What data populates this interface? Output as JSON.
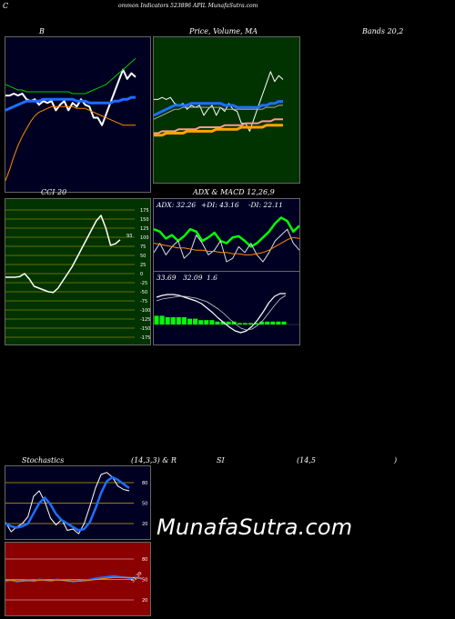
{
  "header": {
    "c": "C",
    "title": "ommon  Indicators 523896  APIL  MunafaSutra.com"
  },
  "titles": {
    "b": "B",
    "price": "Price,  Volume,  MA",
    "bands": "Bands 20,2",
    "cci": "CCI 20",
    "adx": "ADX  & MACD 12,26,9",
    "stoch_a": "Stochastics",
    "stoch_b": "(14,3,3) & R",
    "stoch_c": "SI",
    "stoch_d": "(14,5",
    "stoch_e": ")"
  },
  "watermark": "MunafaSutra.com",
  "colors": {
    "green_bg": "#003300",
    "navy_bg": "#000022",
    "red_bg": "#8b0000",
    "ma_blue": "#1e6fff",
    "orange": "#ff8c00"
  },
  "chart_data": [
    {
      "type": "line",
      "name": "bollinger",
      "series": [
        {
          "name": "price",
          "color": "#ffffff",
          "values": [
            66,
            66,
            67,
            66,
            67,
            64,
            63,
            64,
            61,
            63,
            62,
            63,
            58,
            61,
            63,
            58,
            62,
            60,
            64,
            61,
            60,
            54,
            54,
            50,
            56,
            62,
            68,
            74,
            80,
            75,
            78,
            76
          ]
        },
        {
          "name": "upper",
          "color": "#00cc00",
          "values": [
            72,
            71,
            70,
            69,
            69,
            68,
            68,
            68,
            68,
            68,
            68,
            68,
            68,
            68,
            68,
            68,
            67,
            67,
            67,
            67,
            68,
            69,
            70,
            71,
            72,
            74,
            76,
            78,
            80,
            82,
            84,
            86
          ]
        },
        {
          "name": "middle",
          "color": "#1e6fff",
          "values": [
            58,
            59,
            60,
            61,
            62,
            63,
            63,
            63,
            63,
            64,
            64,
            64,
            64,
            64,
            64,
            64,
            64,
            63,
            63,
            63,
            62,
            62,
            62,
            62,
            62,
            62,
            63,
            63,
            64,
            64,
            65,
            65
          ]
        },
        {
          "name": "lower",
          "color": "#ff8c00",
          "values": [
            20,
            26,
            33,
            39,
            44,
            48,
            52,
            55,
            57,
            58,
            59,
            60,
            60,
            60,
            60,
            60,
            60,
            59,
            59,
            59,
            58,
            57,
            56,
            55,
            54,
            53,
            52,
            51,
            50,
            50,
            50,
            50
          ]
        }
      ]
    },
    {
      "type": "line",
      "name": "price_volume_ma",
      "series": [
        {
          "name": "price",
          "color": "#ffffff",
          "values": [
            66,
            66,
            67,
            66,
            67,
            64,
            63,
            64,
            61,
            63,
            62,
            63,
            58,
            61,
            63,
            58,
            62,
            60,
            64,
            61,
            60,
            54,
            54,
            50,
            56,
            62,
            68,
            74,
            80,
            75,
            78,
            76
          ]
        },
        {
          "name": "ma_blue",
          "color": "#1e6fff",
          "values": [
            58,
            59,
            60,
            61,
            62,
            63,
            63,
            63,
            63,
            64,
            64,
            64,
            64,
            64,
            64,
            64,
            64,
            63,
            63,
            63,
            62,
            62,
            62,
            62,
            62,
            62,
            63,
            63,
            64,
            64,
            65,
            65
          ]
        },
        {
          "name": "ma_gray",
          "color": "#aaaaaa",
          "values": [
            56,
            57,
            58,
            59,
            60,
            61,
            61,
            62,
            62,
            62,
            62,
            62,
            62,
            62,
            62,
            62,
            62,
            61,
            61,
            61,
            61,
            61,
            61,
            61,
            61,
            61,
            61,
            62,
            62,
            62,
            63,
            63
          ]
        },
        {
          "name": "ma_pink",
          "color": "#ff9999",
          "values": [
            49,
            49,
            50,
            50,
            50,
            50,
            51,
            51,
            51,
            51,
            51,
            52,
            52,
            52,
            52,
            52,
            52,
            53,
            53,
            53,
            53,
            53,
            54,
            54,
            54,
            54,
            55,
            55,
            55,
            56,
            56,
            56
          ]
        },
        {
          "name": "ma_orange",
          "color": "#ffa500",
          "values": [
            48,
            48,
            48,
            49,
            49,
            49,
            49,
            49,
            50,
            50,
            50,
            50,
            50,
            50,
            50,
            51,
            51,
            51,
            51,
            51,
            51,
            52,
            52,
            52,
            52,
            52,
            52,
            53,
            53,
            53,
            53,
            53
          ]
        }
      ]
    },
    {
      "type": "line",
      "name": "cci",
      "yticks": [
        175,
        150,
        125,
        100,
        75,
        50,
        25,
        0,
        -25,
        -50,
        -75,
        -100,
        -125,
        -150,
        -175
      ],
      "last_label": "93",
      "series": [
        {
          "name": "cci",
          "color": "#ffffff",
          "values": [
            -10,
            -10,
            -10,
            -8,
            0,
            -15,
            -35,
            -40,
            -45,
            -50,
            -52,
            -40,
            -20,
            0,
            20,
            45,
            70,
            95,
            120,
            145,
            160,
            125,
            78,
            82,
            93
          ]
        }
      ]
    },
    {
      "type": "line",
      "name": "adx",
      "stats": {
        "adx": "ADX: 32.26",
        "pdi": "+DI: 43.16",
        "mdi": "-DI: 22.11"
      },
      "series": [
        {
          "name": "+DI",
          "color": "#00ff00",
          "values": [
            40,
            38,
            32,
            35,
            30,
            34,
            40,
            38,
            30,
            33,
            37,
            30,
            28,
            33,
            34,
            30,
            25,
            28,
            33,
            38,
            45,
            50,
            47,
            38,
            43
          ]
        },
        {
          "name": "-DI",
          "color": "#dddddd",
          "values": [
            20,
            28,
            18,
            25,
            30,
            15,
            20,
            35,
            28,
            18,
            22,
            30,
            12,
            15,
            25,
            20,
            28,
            18,
            12,
            20,
            30,
            35,
            40,
            28,
            22
          ]
        },
        {
          "name": "ADX",
          "color": "#ff8c00",
          "values": [
            28,
            27,
            26,
            25,
            24,
            24,
            23,
            22,
            22,
            21,
            21,
            20,
            20,
            19,
            19,
            18,
            18,
            19,
            20,
            22,
            25,
            28,
            31,
            33,
            32
          ]
        }
      ]
    },
    {
      "type": "line",
      "name": "macd",
      "stats": {
        "macd": "33.69",
        "signal": "32.09",
        "hist": "1.6"
      },
      "series": [
        {
          "name": "macd",
          "color": "#ffffff",
          "values": [
            30,
            32,
            33,
            33,
            32,
            30,
            28,
            26,
            23,
            18,
            13,
            7,
            2,
            -3,
            -7,
            -9,
            -7,
            -2,
            5,
            14,
            24,
            31,
            34,
            34
          ]
        },
        {
          "name": "signal",
          "color": "#cccccc",
          "values": [
            26,
            28,
            29,
            30,
            31,
            31,
            30,
            29,
            27,
            25,
            21,
            17,
            12,
            6,
            1,
            -4,
            -6,
            -5,
            -1,
            5,
            13,
            21,
            28,
            32
          ]
        },
        {
          "name": "hist",
          "color": "#00ff00",
          "values": [
            6,
            6,
            5,
            5,
            5,
            5,
            4,
            4,
            3,
            3,
            3,
            2,
            2,
            2,
            2,
            1,
            1,
            1,
            1,
            2,
            2,
            2,
            2,
            2
          ]
        }
      ]
    },
    {
      "type": "line",
      "name": "stochastics",
      "yticks": [
        80,
        50,
        20
      ],
      "series": [
        {
          "name": "%K",
          "color": "#ffffff",
          "values": [
            22,
            8,
            15,
            20,
            30,
            60,
            68,
            52,
            28,
            18,
            26,
            10,
            12,
            5,
            20,
            45,
            72,
            92,
            95,
            88,
            75,
            70,
            68
          ]
        },
        {
          "name": "%D",
          "color": "#1e6fff",
          "values": [
            20,
            16,
            14,
            16,
            20,
            35,
            50,
            58,
            48,
            34,
            25,
            20,
            15,
            10,
            12,
            22,
            42,
            65,
            82,
            88,
            84,
            78,
            72
          ]
        }
      ]
    },
    {
      "type": "line",
      "name": "rsi",
      "yticks": [
        80,
        50,
        20
      ],
      "last_label": "51.39",
      "series": [
        {
          "name": "rsi",
          "color": "#1e6fff",
          "values": [
            48,
            49,
            47,
            48,
            49,
            48,
            50,
            49,
            48,
            50,
            49,
            48,
            47,
            48,
            49,
            50,
            52,
            53,
            54,
            55,
            54,
            53,
            52,
            53,
            51
          ]
        },
        {
          "name": "rsi_smooth",
          "color": "#ff8c00",
          "values": [
            49,
            49,
            48,
            48,
            48,
            48,
            49,
            49,
            49,
            49,
            49,
            48,
            48,
            48,
            48,
            49,
            50,
            51,
            52,
            53,
            53,
            53,
            53,
            52,
            52
          ]
        }
      ]
    }
  ]
}
